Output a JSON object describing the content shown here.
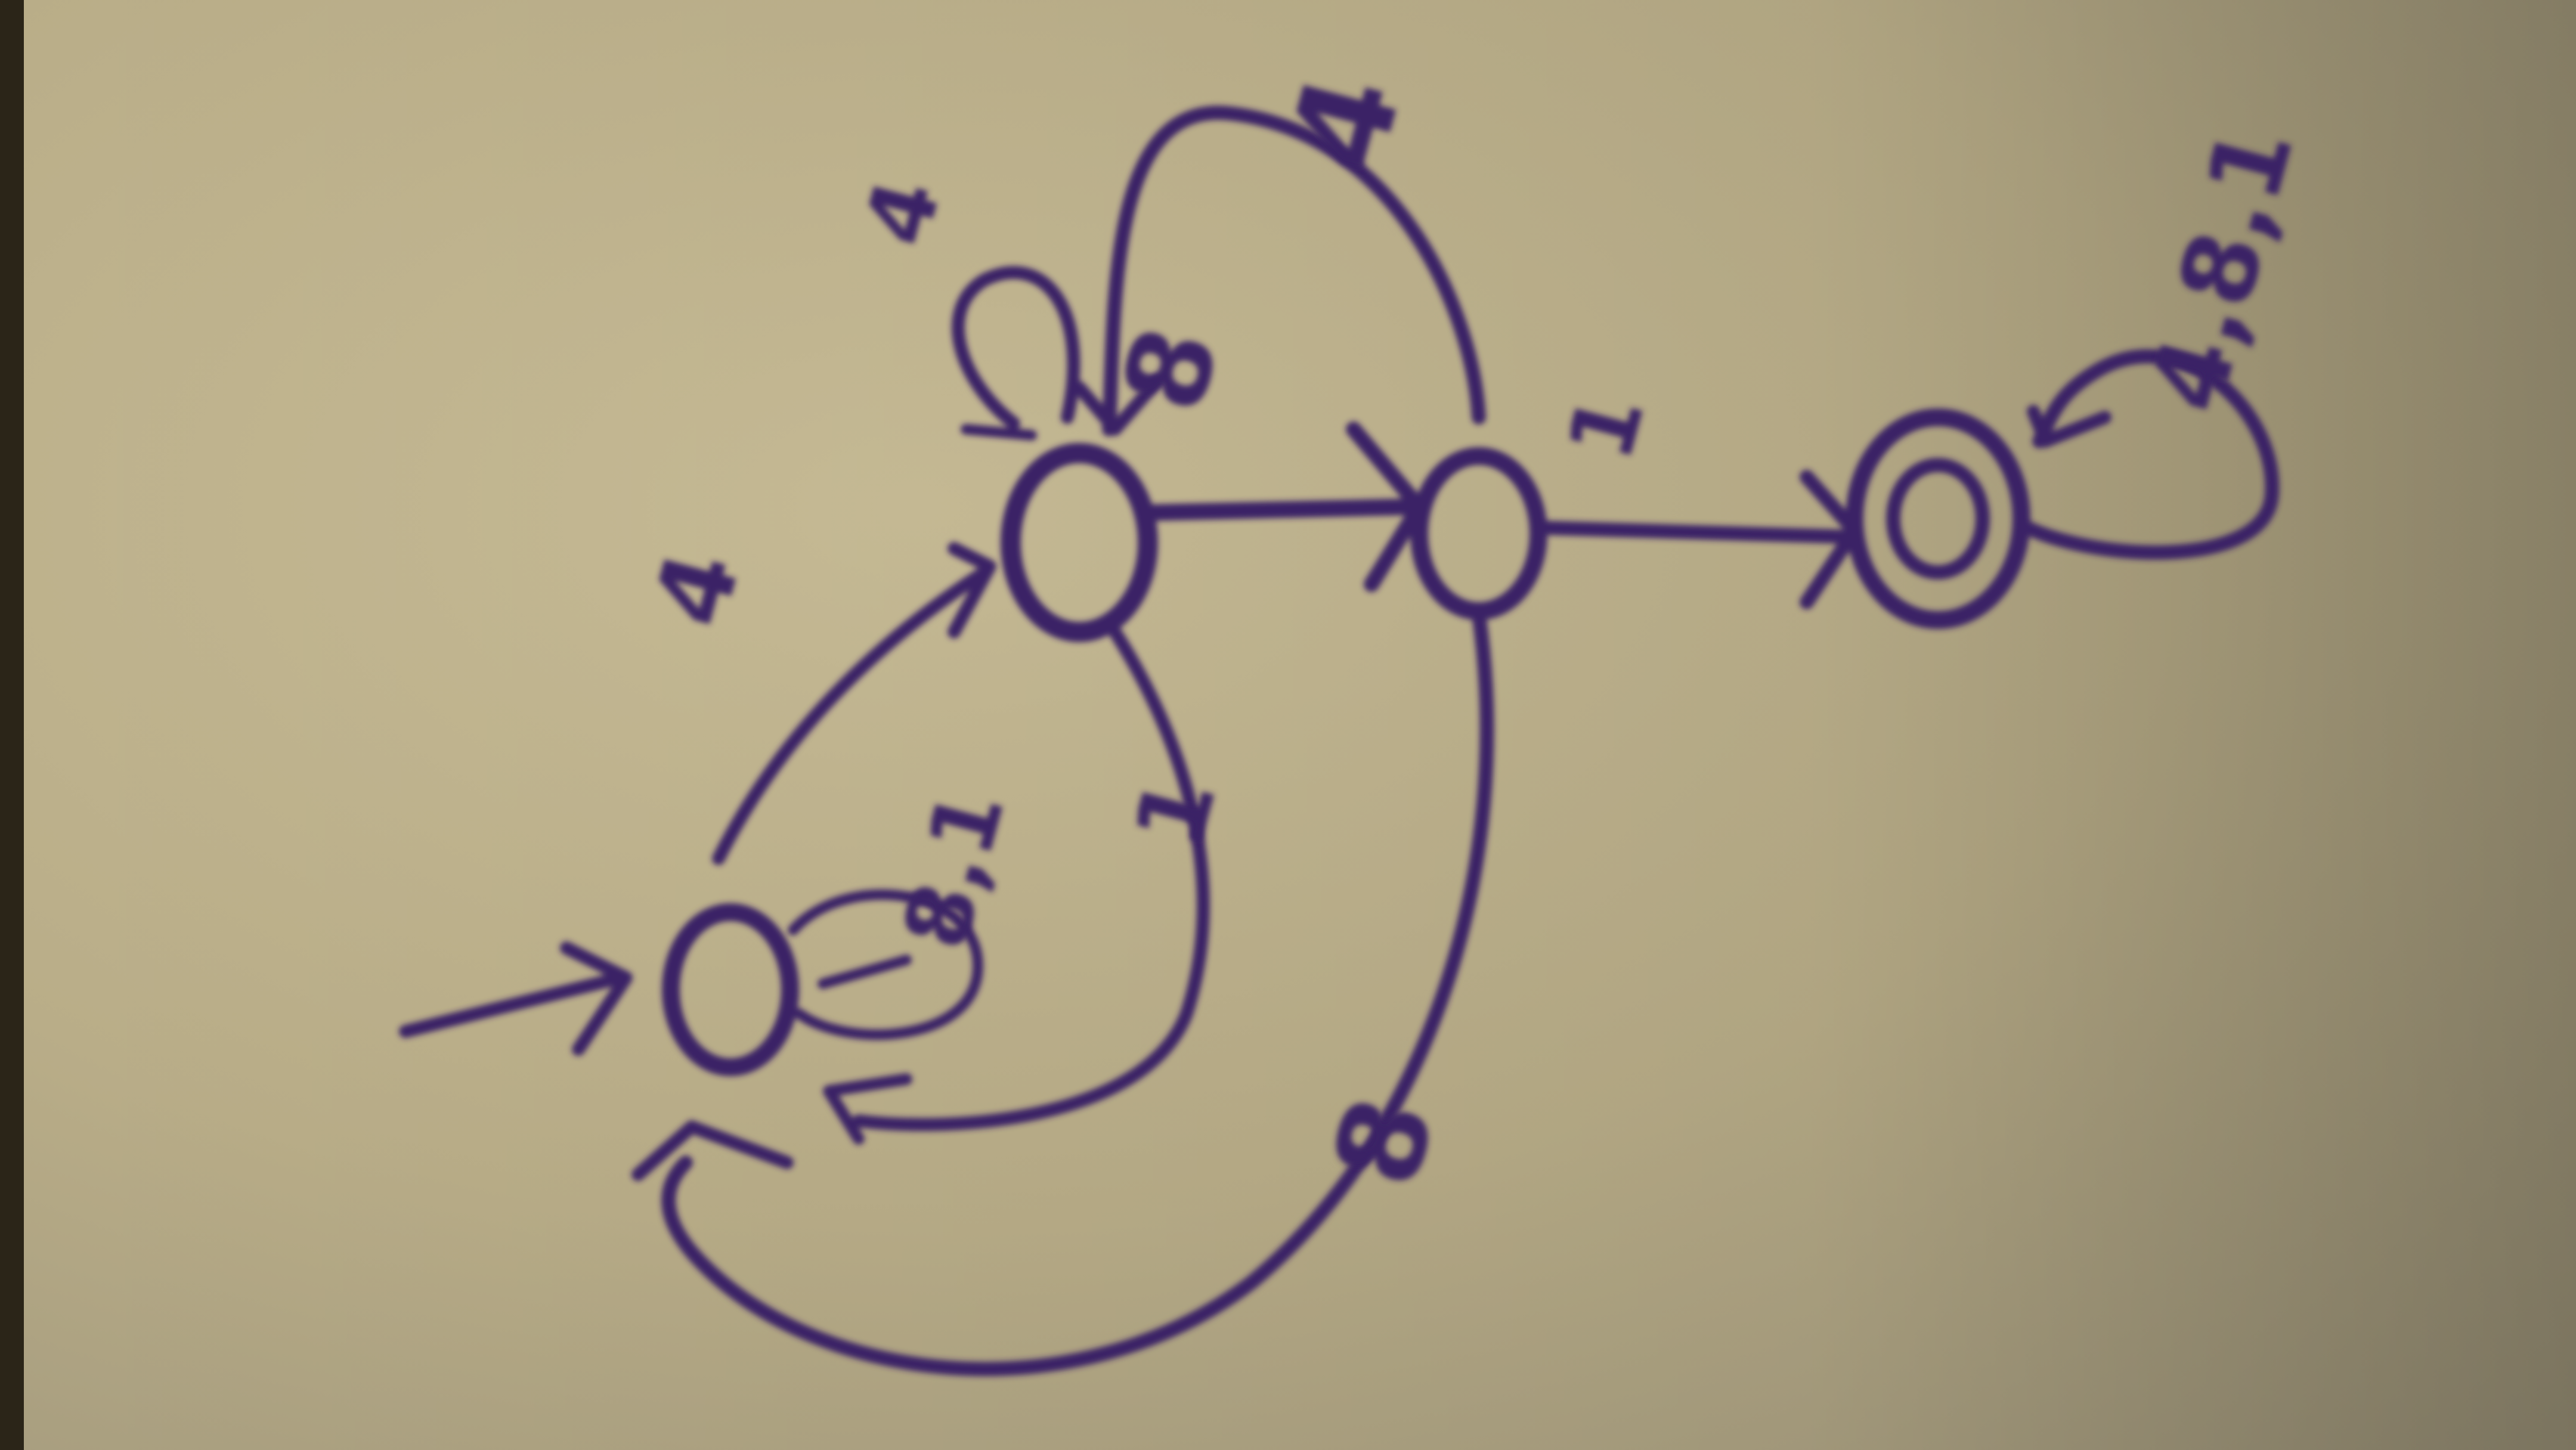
{
  "diagram": {
    "ink_color": "#3b2466",
    "paper_color": "#bdb08a",
    "states": [
      {
        "id": "q0",
        "initial": true,
        "accepting": false
      },
      {
        "id": "q1",
        "initial": false,
        "accepting": false
      },
      {
        "id": "q2",
        "initial": false,
        "accepting": false
      },
      {
        "id": "q3",
        "initial": false,
        "accepting": true
      }
    ],
    "transitions": [
      {
        "from": "q0",
        "to": "q0",
        "label": "8,1"
      },
      {
        "from": "q0",
        "to": "q1",
        "label": "4"
      },
      {
        "from": "q1",
        "to": "q1",
        "label": "4"
      },
      {
        "from": "q1",
        "to": "q2",
        "label": "8"
      },
      {
        "from": "q1",
        "to": "q0",
        "label": "1"
      },
      {
        "from": "q2",
        "to": "q1",
        "label": "4"
      },
      {
        "from": "q2",
        "to": "q3",
        "label": "1"
      },
      {
        "from": "q2",
        "to": "q0",
        "label": "8"
      },
      {
        "from": "q3",
        "to": "q3",
        "label": "4,8,1"
      }
    ]
  }
}
